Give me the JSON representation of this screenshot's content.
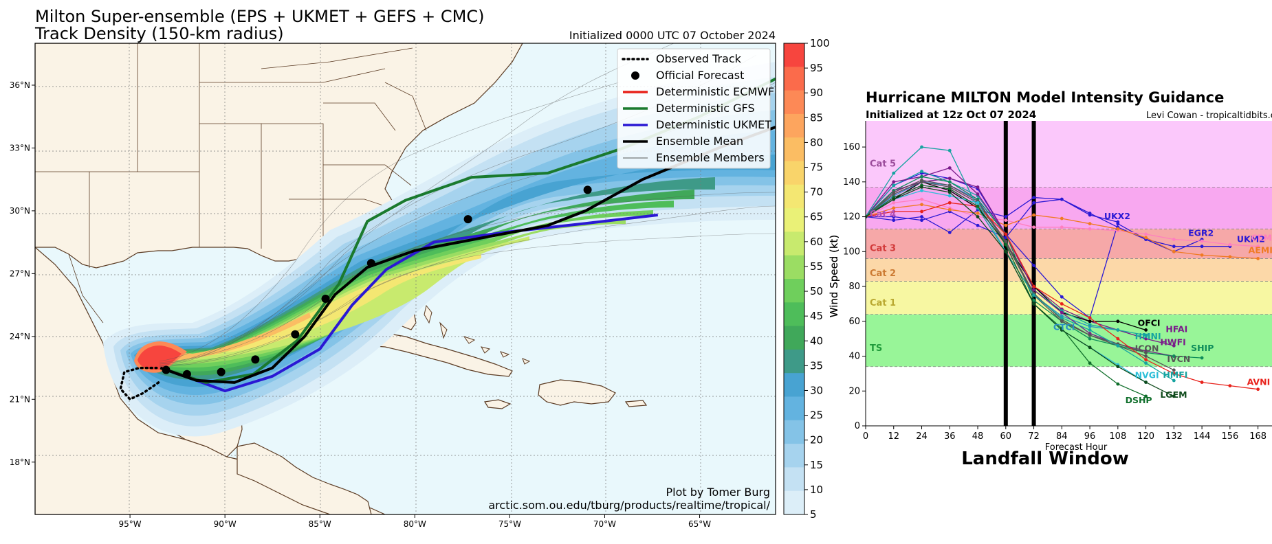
{
  "left_panel": {
    "title_line1": "Milton Super-ensemble (EPS + UKMET + GEFS + CMC)",
    "title_line2": "Track Density (150-km radius)",
    "initialized": "Initialized 0000 UTC 07 October 2024",
    "credit_line1": "Plot by Tomer Burg",
    "credit_line2": "arctic.som.ou.edu/tburg/products/realtime/tropical/",
    "lat_ticks": [
      "36°N",
      "33°N",
      "30°N",
      "27°N",
      "24°N",
      "21°N",
      "18°N"
    ],
    "lon_ticks": [
      "95°W",
      "90°W",
      "85°W",
      "80°W",
      "75°W",
      "70°W",
      "65°W"
    ],
    "legend": [
      {
        "label": "Observed Track",
        "style": "dotted",
        "color": "#000000"
      },
      {
        "label": "Official Forecast",
        "style": "dot",
        "color": "#000000"
      },
      {
        "label": "Deterministic ECMWF",
        "style": "line",
        "color": "#e8221b"
      },
      {
        "label": "Deterministic GFS",
        "style": "line",
        "color": "#1a7a2e"
      },
      {
        "label": "Deterministic UKMET",
        "style": "line",
        "color": "#2a18d4"
      },
      {
        "label": "Ensemble Mean",
        "style": "line",
        "color": "#000000"
      },
      {
        "label": "Ensemble Members",
        "style": "thin",
        "color": "#555555"
      }
    ],
    "colorbar": {
      "label": "Wind Speed (kt)",
      "ticks": [
        "100",
        "95",
        "90",
        "85",
        "80",
        "75",
        "70",
        "65",
        "60",
        "55",
        "50",
        "45",
        "40",
        "35",
        "30",
        "25",
        "20",
        "15",
        "10",
        "5"
      ],
      "colors": [
        "#f7453e",
        "#fb6b4b",
        "#fd8956",
        "#fda55e",
        "#fbbd63",
        "#f9d46a",
        "#f4e772",
        "#eaf177",
        "#c8ea6e",
        "#9bdd63",
        "#6fcf5c",
        "#4ebd5a",
        "#40a85a",
        "#3e9a88",
        "#48a3d2",
        "#63b3e0",
        "#84c3e7",
        "#a6d3ee",
        "#c4e1f3",
        "#dceef8"
      ]
    },
    "chart_data": {
      "type": "map",
      "title": "Milton Super-ensemble (EPS + UKMET + GEFS + CMC)",
      "subtitle": "Track Density (150-km radius)",
      "xlim": [
        -100,
        -61
      ],
      "ylim": [
        15.5,
        38
      ],
      "observed_track": [
        [
          -93.5,
          21.8
        ],
        [
          -94.3,
          21.3
        ],
        [
          -95.0,
          21.0
        ],
        [
          -95.5,
          21.5
        ],
        [
          -95.3,
          22.3
        ],
        [
          -94.5,
          22.5
        ],
        [
          -93.6,
          22.5
        ]
      ],
      "official_forecast": [
        [
          -93.1,
          22.4
        ],
        [
          -92.0,
          22.2
        ],
        [
          -90.2,
          22.3
        ],
        [
          -88.4,
          22.9
        ],
        [
          -86.3,
          24.1
        ],
        [
          -84.7,
          25.8
        ],
        [
          -82.3,
          27.5
        ],
        [
          -77.2,
          29.6
        ],
        [
          -70.9,
          31.0
        ]
      ],
      "ensemble_mean": [
        [
          -93.4,
          22.5
        ],
        [
          -91.5,
          21.9
        ],
        [
          -89.5,
          21.8
        ],
        [
          -87.5,
          22.5
        ],
        [
          -85.8,
          24.0
        ],
        [
          -84.2,
          26.0
        ],
        [
          -82.5,
          27.3
        ],
        [
          -80.0,
          28.1
        ],
        [
          -76.5,
          28.7
        ],
        [
          -73.0,
          29.3
        ],
        [
          -71.0,
          30.0
        ],
        [
          -68.0,
          31.5
        ],
        [
          -64.0,
          33.0
        ],
        [
          -61.0,
          34.0
        ]
      ],
      "gfs": [
        [
          -93.4,
          22.5
        ],
        [
          -91.0,
          21.8
        ],
        [
          -88.5,
          22.2
        ],
        [
          -86.2,
          23.8
        ],
        [
          -84.0,
          26.5
        ],
        [
          -82.5,
          29.5
        ],
        [
          -80.5,
          30.5
        ],
        [
          -77.0,
          31.6
        ],
        [
          -73.0,
          31.8
        ],
        [
          -69.0,
          33.0
        ],
        [
          -65.0,
          34.5
        ],
        [
          -61.0,
          36.3
        ]
      ],
      "ukmet": [
        [
          -93.4,
          22.5
        ],
        [
          -91.5,
          21.9
        ],
        [
          -90.0,
          21.4
        ],
        [
          -87.5,
          22.1
        ],
        [
          -85.0,
          23.4
        ],
        [
          -83.3,
          25.5
        ],
        [
          -81.5,
          27.2
        ],
        [
          -79.0,
          28.5
        ],
        [
          -75.0,
          29.0
        ],
        [
          -71.0,
          29.4
        ],
        [
          -67.2,
          29.8
        ]
      ]
    }
  },
  "right_panel": {
    "title": "Hurricane MILTON Model Intensity Guidance",
    "subtitle": "Initialized at 12z Oct 07 2024",
    "credit": "Levi Cowan - tropicaltidbits.com",
    "ylabel": "Wind Speed (kt)",
    "xlabel": "Forecast Hour",
    "landfall_label": "Landfall Window",
    "x_ticks": [
      "0",
      "12",
      "24",
      "36",
      "48",
      "60",
      "72",
      "84",
      "96",
      "108",
      "120",
      "132",
      "144",
      "156",
      "168"
    ],
    "y_ticks": [
      "0",
      "20",
      "40",
      "60",
      "80",
      "100",
      "120",
      "140",
      "160"
    ],
    "categories": [
      {
        "label": "Cat 5",
        "color": "#9b4c9b"
      },
      {
        "label": "Cat 4",
        "color": "#b24fb8"
      },
      {
        "label": "Cat 3",
        "color": "#d23a3a"
      },
      {
        "label": "Cat 2",
        "color": "#cc7a33"
      },
      {
        "label": "Cat 1",
        "color": "#b9a830"
      },
      {
        "label": "TS",
        "color": "#1f9a3a"
      }
    ],
    "model_labels": [
      {
        "label": "UKX2",
        "color": "#2a18d4"
      },
      {
        "label": "EGR2",
        "color": "#2a18d4"
      },
      {
        "label": "UKM2",
        "color": "#2a18d4"
      },
      {
        "label": "CEM2",
        "color": "#ff7fbf"
      },
      {
        "label": "AEMI",
        "color": "#f07a22"
      },
      {
        "label": "HFAI",
        "color": "#7a1a8a"
      },
      {
        "label": "OFCI",
        "color": "#000000"
      },
      {
        "label": "CTCI",
        "color": "#2a8fc6"
      },
      {
        "label": "HMNI",
        "color": "#16a3a0"
      },
      {
        "label": "HWFI",
        "color": "#7a1a8a"
      },
      {
        "label": "SHIP",
        "color": "#0e8c5a"
      },
      {
        "label": "ICON",
        "color": "#555555"
      },
      {
        "label": "IVCN",
        "color": "#555555"
      },
      {
        "label": "HMFI",
        "color": "#16a3a0"
      },
      {
        "label": "AVNI",
        "color": "#e8221b"
      },
      {
        "label": "NVGI",
        "color": "#2abed8"
      },
      {
        "label": "DSHP",
        "color": "#0e6e2a"
      },
      {
        "label": "LGEM",
        "color": "#0e4a1a"
      }
    ],
    "chart_data": {
      "type": "line",
      "title": "Hurricane MILTON Model Intensity Guidance",
      "xlabel": "Forecast Hour",
      "ylabel": "Wind Speed (kt)",
      "xlim": [
        0,
        174
      ],
      "ylim": [
        0,
        175
      ],
      "category_thresholds": [
        34,
        64,
        83,
        96,
        113,
        137
      ],
      "landfall_window_hours": [
        60,
        72
      ],
      "series": [
        {
          "name": "UKX2",
          "color": "#2a18d4",
          "x": [
            0,
            12,
            24,
            36,
            48,
            60,
            72,
            84,
            96,
            108
          ],
          "y": [
            120,
            120,
            118,
            123,
            115,
            108,
            128,
            130,
            121,
            117
          ]
        },
        {
          "name": "EGR2",
          "color": "#2a18d4",
          "x": [
            0,
            12,
            24,
            36,
            48,
            60,
            72,
            84,
            96,
            108,
            120,
            132,
            144
          ],
          "y": [
            120,
            138,
            145,
            142,
            136,
            110,
            92,
            74,
            62,
            116,
            107,
            100,
            107
          ]
        },
        {
          "name": "UKM2",
          "color": "#2a18d4",
          "x": [
            0,
            12,
            24,
            36,
            48,
            60,
            72,
            84,
            96,
            108,
            120,
            132,
            144,
            156
          ],
          "y": [
            120,
            118,
            120,
            111,
            124,
            120,
            131,
            130,
            122,
            114,
            107,
            103,
            103,
            103
          ]
        },
        {
          "name": "CEM2",
          "color": "#ff7fbf",
          "x": [
            0,
            12,
            24,
            36,
            48,
            60,
            72,
            84,
            96,
            108,
            120,
            132,
            144,
            156,
            168
          ],
          "y": [
            120,
            128,
            130,
            125,
            120,
            118,
            114,
            114,
            113,
            112,
            110,
            107,
            106,
            104,
            103
          ]
        },
        {
          "name": "AEMI",
          "color": "#f07a22",
          "x": [
            0,
            12,
            24,
            36,
            48,
            60,
            72,
            84,
            96,
            108,
            120,
            132,
            144,
            156,
            168
          ],
          "y": [
            120,
            125,
            127,
            124,
            122,
            115,
            121,
            119,
            116,
            113,
            108,
            100,
            98,
            97,
            96
          ]
        },
        {
          "name": "HFAI",
          "color": "#7a1a8a",
          "x": [
            0,
            12,
            24,
            36,
            48,
            60,
            72,
            84,
            96,
            108,
            120,
            132
          ],
          "y": [
            120,
            135,
            140,
            142,
            137,
            110,
            80,
            67,
            60,
            55,
            50,
            46
          ]
        },
        {
          "name": "OFCI",
          "color": "#000000",
          "x": [
            0,
            12,
            24,
            36,
            48,
            60,
            72,
            84,
            96,
            108,
            120
          ],
          "y": [
            120,
            130,
            140,
            135,
            125,
            105,
            80,
            65,
            60,
            60,
            55
          ]
        },
        {
          "name": "CTCI",
          "color": "#2a8fc6",
          "x": [
            0,
            12,
            24,
            36,
            48,
            60,
            72,
            84,
            96,
            108
          ],
          "y": [
            120,
            132,
            140,
            138,
            130,
            105,
            75,
            63,
            57,
            55
          ]
        },
        {
          "name": "HMNI",
          "color": "#16a3a0",
          "x": [
            0,
            12,
            24,
            36,
            48,
            60,
            72,
            84,
            96,
            108,
            120
          ],
          "y": [
            120,
            138,
            146,
            140,
            132,
            110,
            78,
            66,
            58,
            55,
            52
          ]
        },
        {
          "name": "HWFI",
          "color": "#7a1a8a",
          "x": [
            0,
            12,
            24,
            36,
            48,
            60,
            72,
            84,
            96,
            108,
            120,
            132
          ],
          "y": [
            120,
            140,
            143,
            148,
            133,
            110,
            78,
            65,
            53,
            47,
            43,
            40
          ]
        },
        {
          "name": "SHIP",
          "color": "#0e8c5a",
          "x": [
            0,
            12,
            24,
            36,
            48,
            60,
            72,
            84,
            96,
            108,
            120,
            132,
            144
          ],
          "y": [
            120,
            135,
            143,
            140,
            130,
            110,
            72,
            60,
            50,
            46,
            42,
            40,
            39
          ]
        },
        {
          "name": "ICON",
          "color": "#555555",
          "x": [
            0,
            12,
            24,
            36,
            48,
            60,
            72,
            84,
            96,
            108,
            120
          ],
          "y": [
            120,
            133,
            140,
            137,
            128,
            105,
            75,
            60,
            52,
            47,
            42
          ]
        },
        {
          "name": "IVCN",
          "color": "#555555",
          "x": [
            0,
            12,
            24,
            36,
            48,
            60,
            72,
            84,
            96,
            108,
            120,
            132
          ],
          "y": [
            120,
            134,
            141,
            138,
            129,
            106,
            76,
            61,
            52,
            46,
            40,
            32
          ]
        },
        {
          "name": "HMFI",
          "color": "#16a3a0",
          "x": [
            0,
            12,
            24,
            36,
            48,
            60,
            72,
            84,
            96,
            108,
            120,
            132
          ],
          "y": [
            120,
            145,
            160,
            158,
            125,
            100,
            75,
            62,
            55,
            46,
            36,
            26
          ]
        },
        {
          "name": "AVNI",
          "color": "#e8221b",
          "x": [
            0,
            12,
            24,
            36,
            48,
            60,
            72,
            84,
            96,
            108,
            120,
            132,
            144,
            156,
            168
          ],
          "y": [
            120,
            123,
            123,
            128,
            126,
            110,
            80,
            70,
            62,
            50,
            38,
            30,
            25,
            23,
            21
          ]
        },
        {
          "name": "NVGI",
          "color": "#2abed8",
          "x": [
            0,
            12,
            24,
            36,
            48,
            60,
            72,
            84,
            96,
            108,
            120
          ],
          "y": [
            120,
            130,
            135,
            132,
            128,
            100,
            70,
            55,
            45,
            35,
            25
          ]
        },
        {
          "name": "DSHP",
          "color": "#0e6e2a",
          "x": [
            0,
            12,
            24,
            36,
            48,
            60,
            72,
            84,
            96,
            108,
            120
          ],
          "y": [
            120,
            131,
            138,
            136,
            126,
            104,
            70,
            56,
            36,
            24,
            17
          ]
        },
        {
          "name": "LGEM",
          "color": "#0e4a1a",
          "x": [
            0,
            12,
            24,
            36,
            48,
            60,
            72,
            84,
            96,
            108,
            120,
            132
          ],
          "y": [
            120,
            130,
            137,
            134,
            120,
            100,
            70,
            55,
            45,
            34,
            25,
            17
          ]
        }
      ]
    }
  }
}
